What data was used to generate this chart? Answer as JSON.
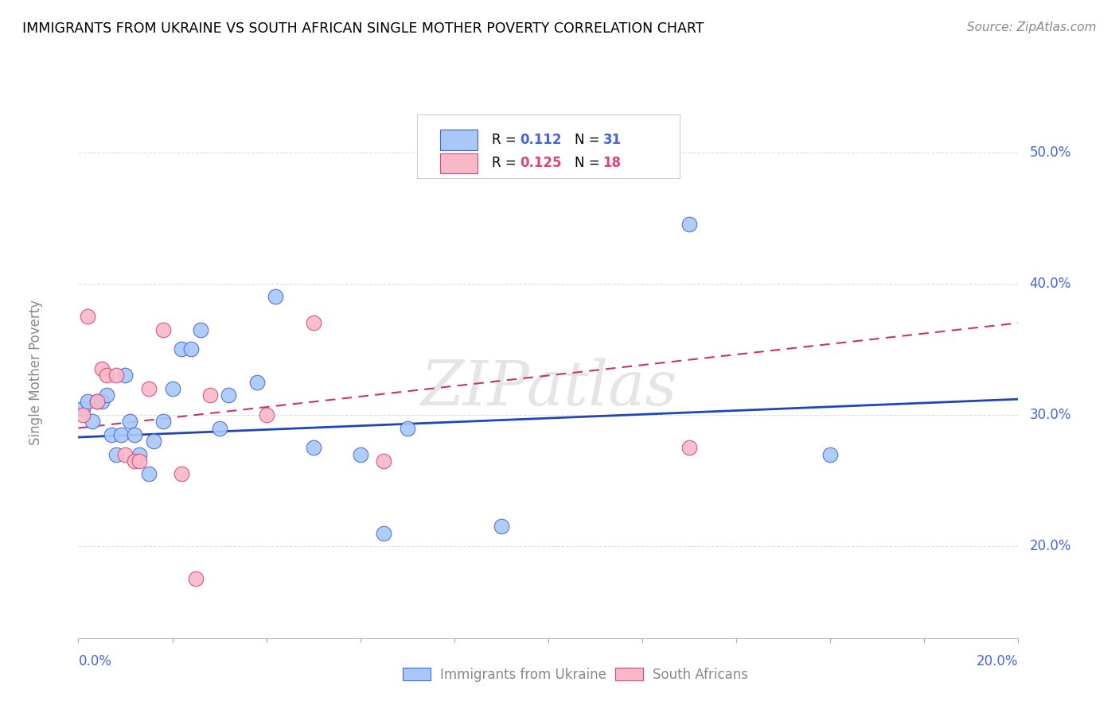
{
  "title": "IMMIGRANTS FROM UKRAINE VS SOUTH AFRICAN SINGLE MOTHER POVERTY CORRELATION CHART",
  "source": "Source: ZipAtlas.com",
  "ylabel": "Single Mother Poverty",
  "yticks": [
    0.2,
    0.3,
    0.4,
    0.5
  ],
  "ytick_labels": [
    "20.0%",
    "30.0%",
    "40.0%",
    "50.0%"
  ],
  "xlim": [
    0.0,
    0.2
  ],
  "ylim": [
    0.13,
    0.535
  ],
  "ukraine_color": "#A8C8F8",
  "sa_color": "#F8B8C8",
  "ukraine_edge_color": "#4466DD",
  "sa_edge_color": "#DD4477",
  "ukraine_line_color": "#2244BB",
  "sa_line_color": "#CC3366",
  "label_color": "#4466DD",
  "ukraine_points_x": [
    0.001,
    0.002,
    0.003,
    0.004,
    0.005,
    0.006,
    0.007,
    0.008,
    0.009,
    0.01,
    0.011,
    0.012,
    0.013,
    0.015,
    0.016,
    0.018,
    0.02,
    0.022,
    0.024,
    0.026,
    0.03,
    0.032,
    0.038,
    0.042,
    0.05,
    0.06,
    0.065,
    0.07,
    0.09,
    0.13,
    0.16
  ],
  "ukraine_points_y": [
    0.305,
    0.31,
    0.295,
    0.31,
    0.31,
    0.315,
    0.285,
    0.27,
    0.285,
    0.33,
    0.295,
    0.285,
    0.27,
    0.255,
    0.28,
    0.295,
    0.32,
    0.35,
    0.35,
    0.365,
    0.29,
    0.315,
    0.325,
    0.39,
    0.275,
    0.27,
    0.21,
    0.29,
    0.215,
    0.445,
    0.27
  ],
  "sa_points_x": [
    0.001,
    0.002,
    0.004,
    0.005,
    0.006,
    0.008,
    0.01,
    0.012,
    0.013,
    0.015,
    0.018,
    0.022,
    0.025,
    0.028,
    0.04,
    0.05,
    0.065,
    0.13
  ],
  "sa_points_y": [
    0.3,
    0.375,
    0.31,
    0.335,
    0.33,
    0.33,
    0.27,
    0.265,
    0.265,
    0.32,
    0.365,
    0.255,
    0.175,
    0.315,
    0.3,
    0.37,
    0.265,
    0.275
  ],
  "ukraine_trend_y0": 0.283,
  "ukraine_trend_y1": 0.312,
  "sa_trend_y0": 0.29,
  "sa_trend_y1": 0.37,
  "watermark": "ZIPatlas",
  "grid_color": "#DDDDDD",
  "background_color": "#FFFFFF"
}
